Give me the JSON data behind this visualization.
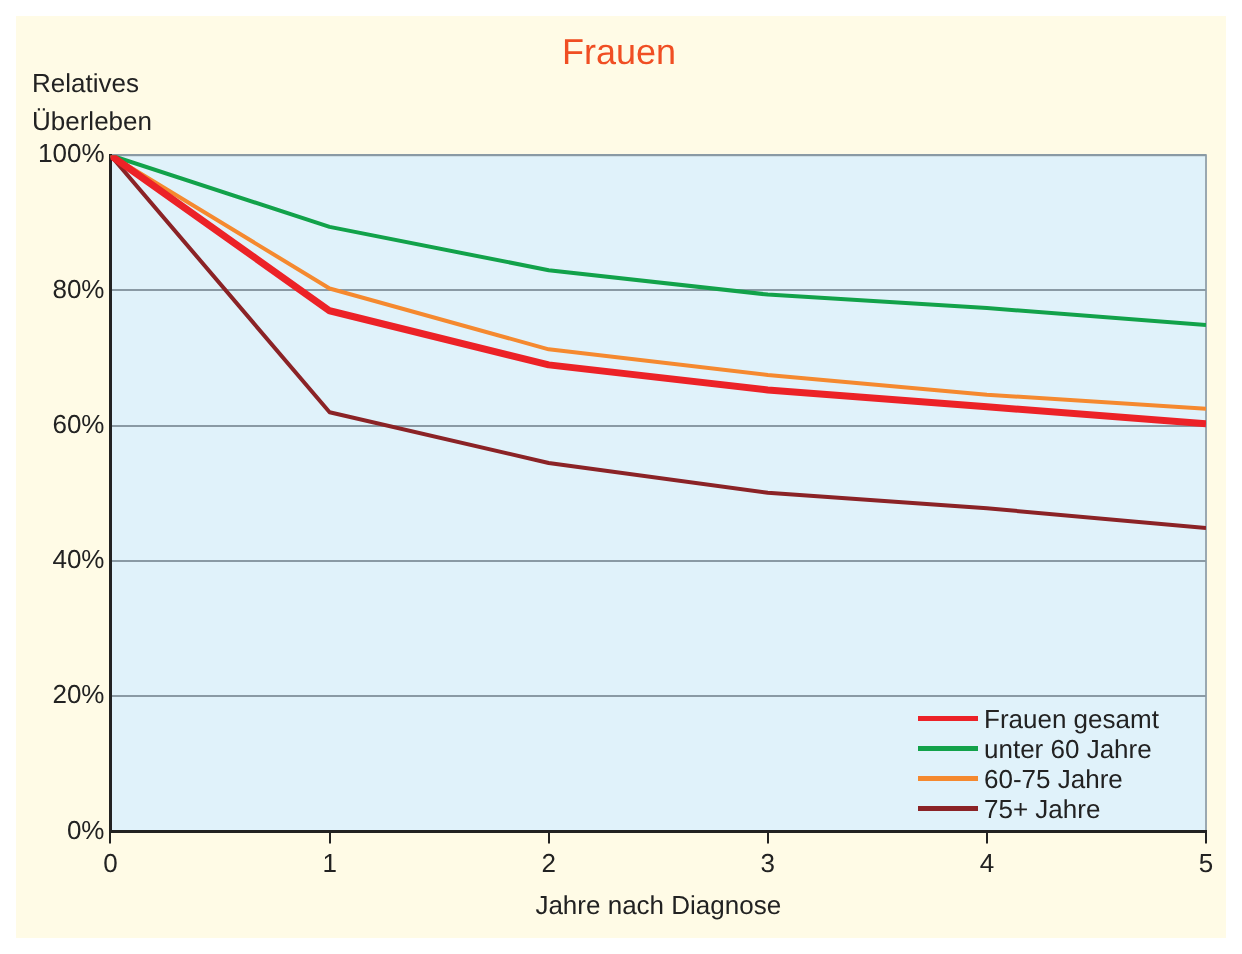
{
  "chart_data": {
    "type": "line",
    "title": "Frauen",
    "xlabel": "Jahre nach Diagnose",
    "ylabel": "Relatives Überleben",
    "x": [
      0,
      1,
      2,
      3,
      4,
      5
    ],
    "xlim": [
      0,
      5
    ],
    "xticks": [
      0,
      1,
      2,
      3,
      4,
      5
    ],
    "ylim": [
      0,
      100
    ],
    "yticks": [
      {
        "value": 0,
        "label": "0%"
      },
      {
        "value": 20,
        "label": "20%"
      },
      {
        "value": 40,
        "label": "40%"
      },
      {
        "value": 60,
        "label": "60%"
      },
      {
        "value": 80,
        "label": "80%"
      },
      {
        "value": 100,
        "label": "100%"
      }
    ],
    "grid": "y",
    "legend": "bottom right",
    "marker": "none",
    "line_style": "solid",
    "series": [
      {
        "name": "Frauen gesamt",
        "color": "#ec2227",
        "values": [
          100,
          77.0,
          69.0,
          65.3,
          62.8,
          60.3
        ]
      },
      {
        "name": "unter 60 Jahre",
        "color": "#12a24a",
        "values": [
          100,
          89.4,
          83.0,
          79.4,
          77.4,
          74.9
        ]
      },
      {
        "name": "60-75 Jahre",
        "color": "#f5892f",
        "values": [
          100,
          80.3,
          71.3,
          67.5,
          64.6,
          62.5
        ]
      },
      {
        "name": "75+ Jahre",
        "color": "#8b2326",
        "values": [
          100,
          62.0,
          54.5,
          50.1,
          47.8,
          44.9
        ]
      }
    ]
  }
}
